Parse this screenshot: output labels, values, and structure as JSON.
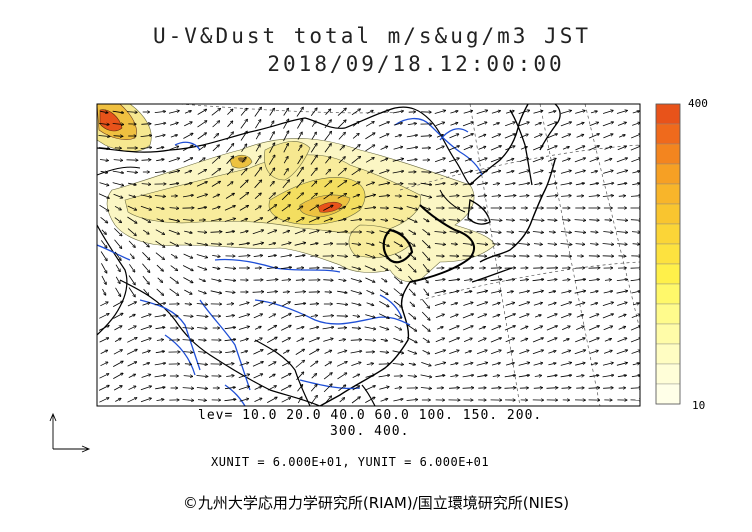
{
  "header": {
    "title": "U-V&Dust total m/s&ug/m3 JST",
    "timestamp": "2018/09/18.12:00:00"
  },
  "legend": {
    "levels_line1": "lev= 10.0 20.0 40.0 60.0 100. 150. 200.",
    "levels_line2": "300. 400.",
    "colorbar_max": "400",
    "colorbar_min": "10",
    "colorbar_colors": [
      "#e8531a",
      "#ef6a1c",
      "#f3851f",
      "#f6a024",
      "#f8b52a",
      "#f9c52f",
      "#fbd537",
      "#fde23f",
      "#fff04a",
      "#fff86a",
      "#fffb8c",
      "#fffca8",
      "#fffdc2",
      "#fffed8",
      "#ffffe8"
    ]
  },
  "units": {
    "text": "XUNIT = 6.000E+01, YUNIT = 6.000E+01"
  },
  "credit": {
    "text": "©九州大学応用力学研究所(RIAM)/国立環境研究所(NIES)"
  },
  "colors": {
    "dust_light": "#fbf6c4",
    "dust_mid": "#f6e890",
    "dust_high": "#f0d040",
    "dust_peak": "#e8531a",
    "river": "#1f4fd6",
    "coast": "#000000"
  }
}
